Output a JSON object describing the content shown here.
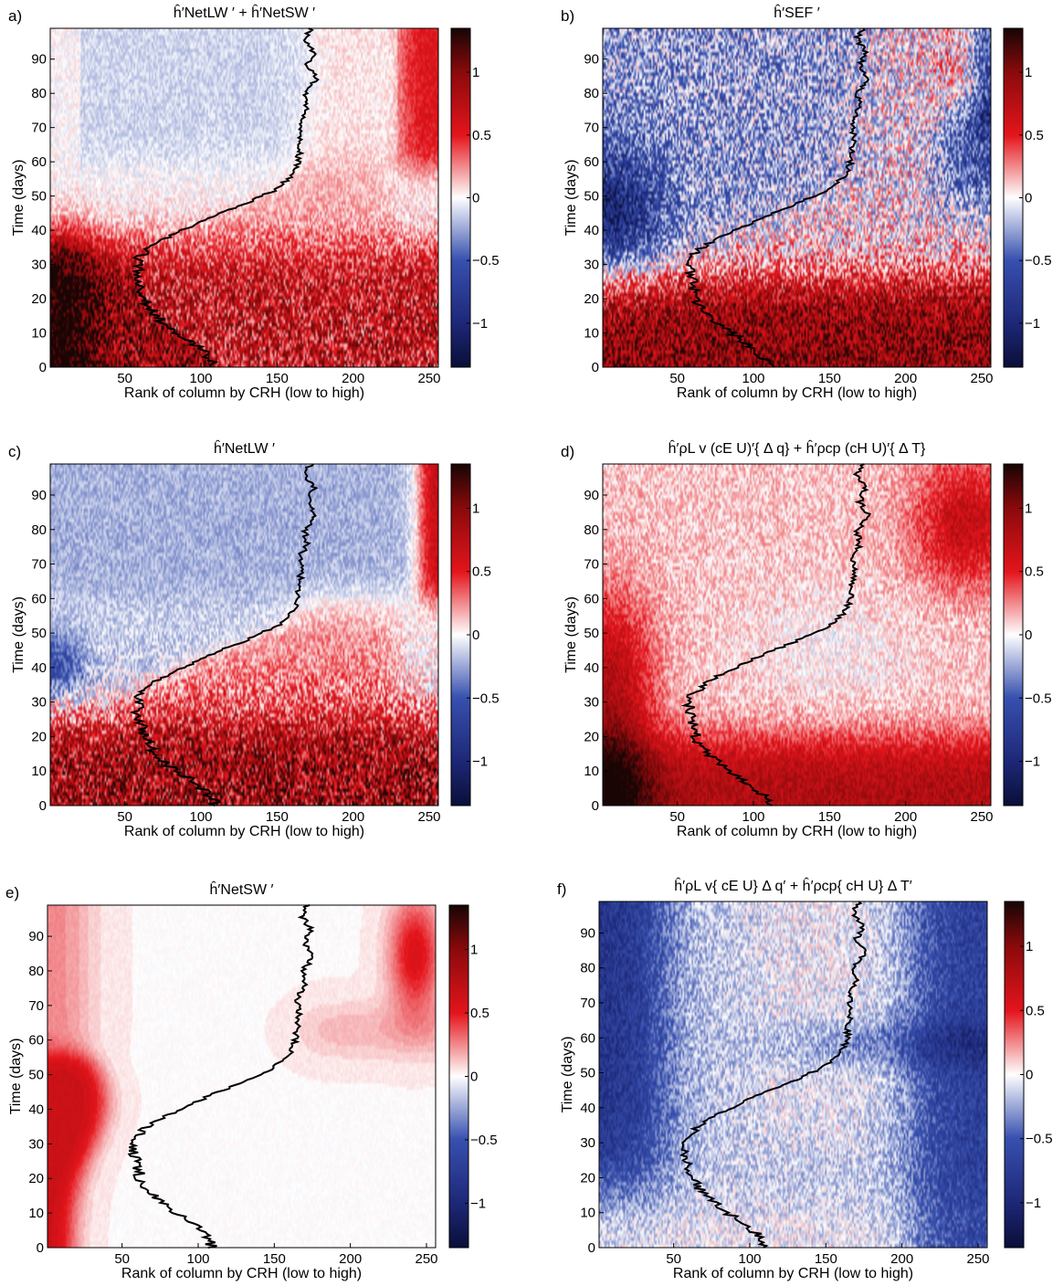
{
  "figure": {
    "panels": [
      {
        "label": "a)",
        "title": "ĥ′NetLW ′ + ĥ′NetSW ′",
        "pattern": "netrad"
      },
      {
        "label": "b)",
        "title": "ĥ′SEF ′",
        "pattern": "sef"
      },
      {
        "label": "c)",
        "title": "ĥ′NetLW ′",
        "pattern": "netlw"
      },
      {
        "label": "d)",
        "title": "ĥ′ρL v (cE U)′{ Δ q} + ĥ′ρcp (cH U)′{ Δ T}",
        "pattern": "windfb"
      },
      {
        "label": "e)",
        "title": "ĥ′NetSW ′",
        "pattern": "netsw"
      },
      {
        "label": "f)",
        "title": "ĥ′ρL v{ cE U} Δ q′ + ĥ′ρcp{ cH U} Δ T′",
        "pattern": "thermofb"
      }
    ]
  },
  "chart_data": {
    "type": "heatmap",
    "xlabel": "Rank of column by CRH (low to high)",
    "ylabel": "Time (days)",
    "xlim": [
      1,
      256
    ],
    "ylim": [
      0,
      99
    ],
    "xticks": [
      50,
      100,
      150,
      200,
      250
    ],
    "yticks": [
      0,
      10,
      20,
      30,
      40,
      50,
      60,
      70,
      80,
      90
    ],
    "colorbar": {
      "range": [
        -1.35,
        1.35
      ],
      "ticks": [
        -1,
        -0.5,
        0,
        0.5,
        1
      ],
      "tick_labels": [
        "−1",
        "−0.5",
        "0",
        "0.5",
        "1"
      ],
      "colors": [
        "#0a0f3a",
        "#2f45a8",
        "#ffffff",
        "#e4151c",
        "#1a0505"
      ]
    },
    "contour_line": {
      "description_values": "CRH rank of the dry-moist boundary vs time",
      "time_days": [
        0,
        4,
        8,
        12,
        16,
        20,
        24,
        28,
        32,
        36,
        40,
        44,
        48,
        52,
        56,
        60,
        64,
        68,
        72,
        76,
        80,
        84,
        88,
        92,
        96,
        99
      ],
      "rank": [
        110,
        104,
        92,
        78,
        68,
        62,
        60,
        58,
        60,
        70,
        88,
        108,
        130,
        150,
        160,
        164,
        165,
        166,
        165,
        170,
        168,
        176,
        170,
        174,
        168,
        172
      ]
    }
  }
}
